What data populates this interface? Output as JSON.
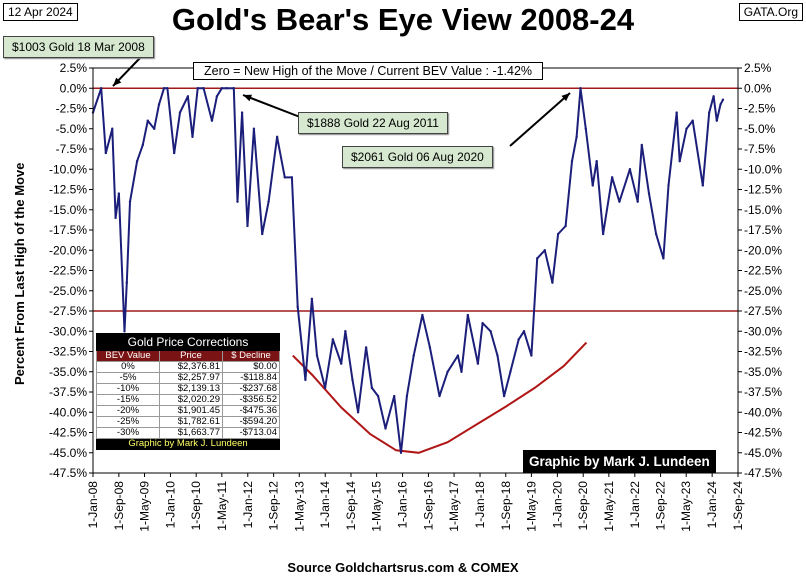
{
  "header": {
    "date": "12 Apr 2024",
    "title": "Gold's Bear's Eye View 2008-24",
    "brand": "GATA.Org"
  },
  "zero_note": "Zero = New High of the Move / Current  BEV Value : -1.42%",
  "callouts": {
    "c2008": "$1003 Gold 18 Mar 2008",
    "c2011": "$1888 Gold 22 Aug 2011",
    "c2020": "$2061 Gold 06 Aug 2020"
  },
  "credit": "Graphic by Mark J. Lundeen",
  "source": "Source Goldchartsrus.com & COMEX",
  "table": {
    "title": "Gold Price Corrections",
    "headers": [
      "BEV Value",
      "Price",
      "$ Decline"
    ],
    "rows": [
      [
        "0%",
        "$2,376.81",
        "$0.00"
      ],
      [
        "-5%",
        "$2,257.97",
        "-$118.84"
      ],
      [
        "-10%",
        "$2,139.13",
        "-$237.68"
      ],
      [
        "-15%",
        "$2,020.29",
        "-$356.52"
      ],
      [
        "-20%",
        "$1,901.45",
        "-$475.36"
      ],
      [
        "-25%",
        "$1,782.61",
        "-$594.20"
      ],
      [
        "-30%",
        "$1,663.77",
        "-$713.04"
      ]
    ],
    "footer": "Graphic by Mark J. Lundeen"
  },
  "colors": {
    "series": "#1c1f7a",
    "reference_lines": "#a01a1a",
    "trend_curve": "#b01616",
    "callout_bg": "#d6e8cf"
  },
  "chart_data": {
    "type": "line",
    "title": "Gold's Bear's Eye View 2008-24",
    "ylabel": "Percent  From Last High of the Move",
    "xlabel": "Source Goldchartsrus.com & COMEX",
    "ylim": [
      -47.5,
      2.5
    ],
    "xlim": [
      "2008-01-01",
      "2024-09-01"
    ],
    "y_ticks": [
      "2.5%",
      "0.0%",
      "-2.5%",
      "-5.0%",
      "-7.5%",
      "-10.0%",
      "-12.5%",
      "-15.0%",
      "-17.5%",
      "-20.0%",
      "-22.5%",
      "-25.0%",
      "-27.5%",
      "-30.0%",
      "-32.5%",
      "-35.0%",
      "-37.5%",
      "-40.0%",
      "-42.5%",
      "-45.0%",
      "-47.5%"
    ],
    "x_ticks": [
      "1-Jan-08",
      "1-Sep-08",
      "1-May-09",
      "1-Jan-10",
      "1-Sep-10",
      "1-May-11",
      "1-Jan-12",
      "1-Sep-12",
      "1-May-13",
      "1-Jan-14",
      "1-Sep-14",
      "1-May-15",
      "1-Jan-16",
      "1-Sep-16",
      "1-May-17",
      "1-Jan-18",
      "1-Sep-18",
      "1-May-19",
      "1-Jan-20",
      "1-Sep-20",
      "1-May-21",
      "1-Jan-22",
      "1-Sep-22",
      "1-May-23",
      "1-Jan-24",
      "1-Sep-24"
    ],
    "reference_lines": [
      0.0,
      -27.5
    ],
    "current_value": -1.42,
    "grid": false,
    "series": [
      {
        "x": [
          "2008-01-01",
          "2008-03-18",
          "2008-05-01",
          "2008-07-01",
          "2008-08-01",
          "2008-09-01",
          "2008-10-24",
          "2008-11-15",
          "2008-12-15",
          "2009-02-20",
          "2009-04-15",
          "2009-06-01",
          "2009-08-01",
          "2009-09-15",
          "2009-11-01",
          "2009-12-03",
          "2010-02-05",
          "2010-04-01",
          "2010-06-15",
          "2010-07-28",
          "2010-09-15",
          "2010-11-10",
          "2011-01-28",
          "2011-03-15",
          "2011-05-01",
          "2011-06-15",
          "2011-08-22",
          "2011-09-26",
          "2011-11-08",
          "2011-12-29",
          "2012-02-28",
          "2012-05-16",
          "2012-07-15",
          "2012-10-04",
          "2012-12-15",
          "2013-02-20",
          "2013-04-16",
          "2013-06-28",
          "2013-08-28",
          "2013-10-15",
          "2013-12-31",
          "2014-03-14",
          "2014-06-01",
          "2014-07-10",
          "2014-09-15",
          "2014-11-07",
          "2015-01-22",
          "2015-03-17",
          "2015-05-15",
          "2015-07-24",
          "2015-10-14",
          "2015-12-17",
          "2016-02-11",
          "2016-04-15",
          "2016-07-06",
          "2016-09-15",
          "2016-12-15",
          "2017-03-01",
          "2017-06-06",
          "2017-07-10",
          "2017-09-08",
          "2017-12-12",
          "2018-01-25",
          "2018-04-11",
          "2018-06-15",
          "2018-08-16",
          "2018-10-15",
          "2019-01-01",
          "2019-02-20",
          "2019-05-01",
          "2019-06-25",
          "2019-09-04",
          "2019-11-15",
          "2020-01-08",
          "2020-03-19",
          "2020-05-18",
          "2020-07-01",
          "2020-08-06",
          "2020-09-25",
          "2020-11-30",
          "2021-01-06",
          "2021-03-08",
          "2021-06-01",
          "2021-08-09",
          "2021-11-16",
          "2022-01-28",
          "2022-03-08",
          "2022-05-15",
          "2022-07-21",
          "2022-09-28",
          "2022-11-15",
          "2023-01-31",
          "2023-03-01",
          "2023-05-04",
          "2023-07-01",
          "2023-10-05",
          "2023-12-04",
          "2024-01-15",
          "2024-02-14",
          "2024-03-20",
          "2024-04-12"
        ],
        "values": [
          -3,
          0,
          -8,
          -5,
          -16,
          -13,
          -30,
          -24,
          -14,
          -9,
          -7,
          -4,
          -5,
          -2,
          0,
          0,
          -8,
          -3,
          -1,
          -6,
          0,
          0,
          -4,
          -1,
          0,
          0,
          0,
          -14,
          -3,
          -17,
          -5,
          -18,
          -14,
          -6,
          -11,
          -11,
          -27,
          -36,
          -26,
          -33,
          -37,
          -31,
          -34,
          -30,
          -36,
          -40,
          -32,
          -37,
          -38,
          -42,
          -38,
          -45,
          -38,
          -33,
          -28,
          -32,
          -38,
          -35,
          -33,
          -35,
          -28,
          -34,
          -29,
          -30,
          -33,
          -38,
          -35,
          -31,
          -30,
          -33,
          -21,
          -20,
          -24,
          -18,
          -17,
          -9,
          -6,
          0,
          -5,
          -12,
          -9,
          -18,
          -11,
          -14,
          -10,
          -14,
          -7,
          -13,
          -18,
          -21,
          -12,
          -3,
          -9,
          -5,
          -4,
          -12,
          -3,
          -1,
          -4,
          -2,
          -1.42
        ]
      }
    ],
    "trend_curve": {
      "x": [
        "2013-03-01",
        "2013-09-01",
        "2014-06-01",
        "2015-03-01",
        "2015-11-01",
        "2016-06-01",
        "2017-03-01",
        "2017-12-01",
        "2018-09-01",
        "2019-06-01",
        "2020-03-01",
        "2020-10-01"
      ],
      "values": [
        -33.0,
        -35.4,
        -39.4,
        -42.7,
        -44.7,
        -45.0,
        -43.7,
        -41.5,
        -39.3,
        -37.0,
        -34.3,
        -31.4
      ]
    }
  }
}
